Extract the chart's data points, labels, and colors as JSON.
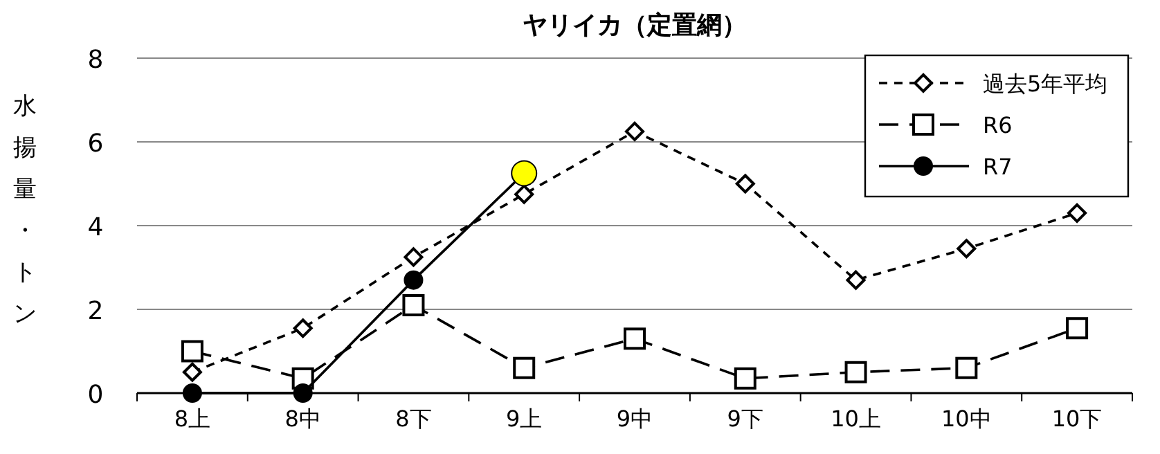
{
  "chart_data": {
    "type": "line",
    "title": "ヤリイカ（定置網）",
    "ylabel": "水揚量・トン",
    "categories": [
      "8上",
      "8中",
      "8下",
      "9上",
      "9中",
      "9下",
      "10上",
      "10中",
      "10下"
    ],
    "series": [
      {
        "name": "過去5年平均",
        "color": "#000000",
        "marker": "diamond",
        "line_style": "dotted",
        "values": [
          0.5,
          1.55,
          3.25,
          4.75,
          6.25,
          5.0,
          2.7,
          3.45,
          4.3
        ]
      },
      {
        "name": "R6",
        "color": "#000000",
        "marker": "square",
        "line_style": "dashed",
        "values": [
          1.0,
          0.35,
          2.1,
          0.6,
          1.3,
          0.35,
          0.5,
          0.6,
          1.55
        ]
      },
      {
        "name": "R7",
        "color": "#000000",
        "marker": "circle",
        "line_style": "solid",
        "values": [
          0,
          0,
          2.7,
          5.25,
          null,
          null,
          null,
          null,
          null
        ],
        "colors": [
          "#000000",
          "#000000",
          "#000000",
          "#ffff00",
          null,
          null,
          null,
          null,
          null
        ]
      }
    ],
    "ylim": [
      0,
      8
    ],
    "yticks": [
      0,
      2,
      4,
      6,
      8
    ],
    "grid": "y",
    "legend": "top right"
  }
}
